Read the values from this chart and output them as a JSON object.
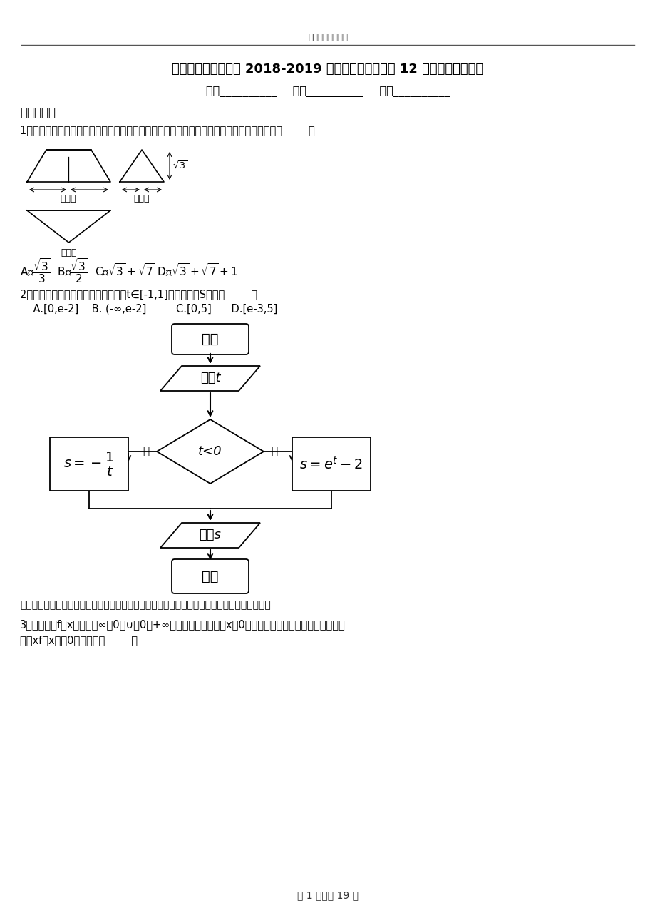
{
  "header_text": "精选高中模拟试卷",
  "title_line1": "政和县第二高级中学 2018-2019 学年上学期高二数学 12 月月考试题含解析",
  "form_line": "班级__________    姓名__________    分数__________",
  "section1": "一、选择题",
  "q1_text": "1．如图所示是一个几何体的三视图，其中正视图是一个正三角形，则这个几何体的表面积是（        ）",
  "q2_text": "2．执行右面的程序框图，如果输入的t∈[-1,1]，则输出的S属于（        ）",
  "q2_ans": "    A.[0,e-2]    B. (-∞,e-2]         C.[0,5]      D.[e-3,5]",
  "comment_text": "【命题意图】本题考查程序框图、分段函数等基础知识，意在考查运算能力和转化思想的运用．",
  "q3_text1": "3．已知函数f（x）是（－∞，0）∪（0，+∞）上的奇函数，且当x＜0时，函数的部分图象如图所示，则不",
  "q3_text2": "等式xf（x）＜0的解集是（        ）",
  "footer_text": "第 1 页，共 19 页",
  "bg_color": "#ffffff"
}
